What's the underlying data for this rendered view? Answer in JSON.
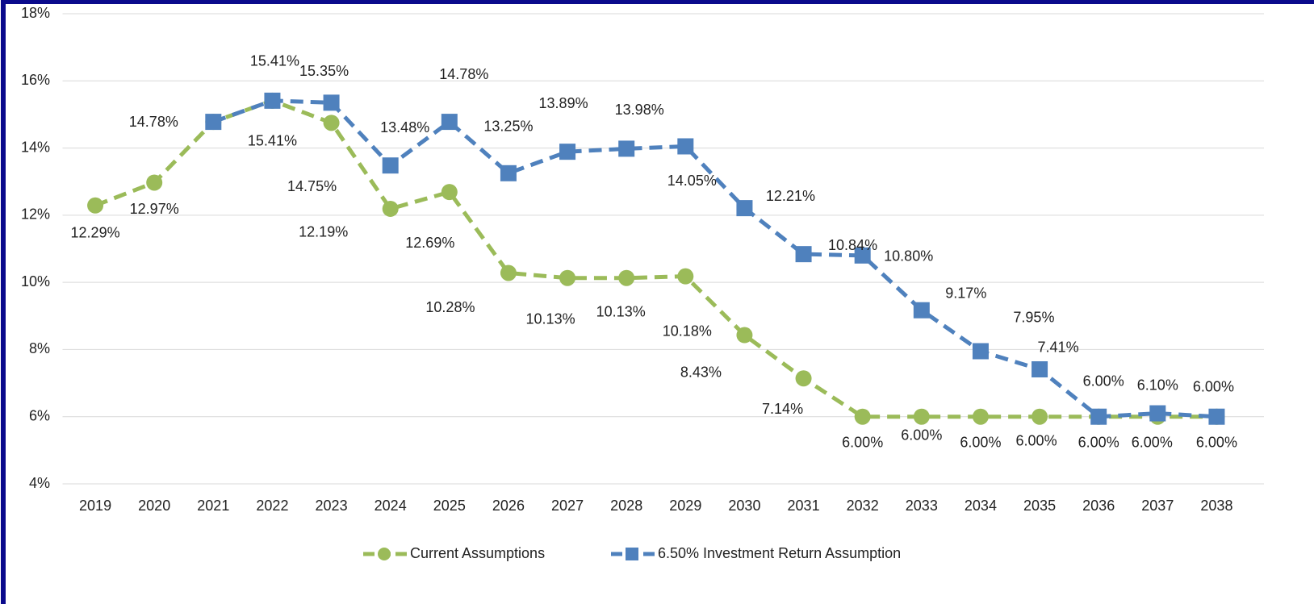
{
  "chart_data": {
    "type": "line",
    "categories": [
      "2019",
      "2020",
      "2021",
      "2022",
      "2023",
      "2024",
      "2025",
      "2026",
      "2027",
      "2028",
      "2029",
      "2030",
      "2031",
      "2032",
      "2033",
      "2034",
      "2035",
      "2036",
      "2037",
      "2038"
    ],
    "series": [
      {
        "name": "Current Assumptions",
        "color": "#9bbb59",
        "marker": "circle",
        "values": [
          12.29,
          12.97,
          14.78,
          15.41,
          14.75,
          12.19,
          12.69,
          10.28,
          10.13,
          10.13,
          10.18,
          8.43,
          7.14,
          6.0,
          6.0,
          6.0,
          6.0,
          6.0,
          6.0,
          6.0
        ],
        "value_labels": [
          "12.29%",
          "12.97%",
          "14.78%",
          "15.41%",
          "14.75%",
          "12.19%",
          "12.69%",
          "10.28%",
          "10.13%",
          "10.13%",
          "10.18%",
          "8.43%",
          "7.14%",
          "6.00%",
          "6.00%",
          "6.00%",
          "6.00%",
          "6.00%",
          "6.00%",
          "6.00%"
        ]
      },
      {
        "name": "6.50% Investment Return Assumption",
        "color": "#4f81bd",
        "marker": "square",
        "values": [
          null,
          null,
          14.78,
          15.41,
          15.35,
          13.48,
          14.78,
          13.25,
          13.89,
          13.98,
          14.05,
          12.21,
          10.84,
          10.8,
          9.17,
          7.95,
          7.41,
          6.0,
          6.1,
          6.0
        ],
        "value_labels": [
          null,
          null,
          null,
          "15.41%",
          "15.35%",
          "13.48%",
          "14.78%",
          "13.25%",
          "13.89%",
          "13.98%",
          "14.05%",
          "12.21%",
          "10.84%",
          "10.80%",
          "9.17%",
          "7.95%",
          "7.41%",
          "6.00%",
          "6.10%",
          "6.00%"
        ]
      }
    ],
    "ylim": [
      4,
      18
    ],
    "yticks": [
      {
        "value": 4,
        "label": "4%"
      },
      {
        "value": 6,
        "label": "6%"
      },
      {
        "value": 8,
        "label": "8%"
      },
      {
        "value": 10,
        "label": "10%"
      },
      {
        "value": 12,
        "label": "12%"
      },
      {
        "value": 14,
        "label": "14%"
      },
      {
        "value": 16,
        "label": "16%"
      },
      {
        "value": 18,
        "label": "18%"
      }
    ],
    "grid": true,
    "legend": "bottom"
  }
}
